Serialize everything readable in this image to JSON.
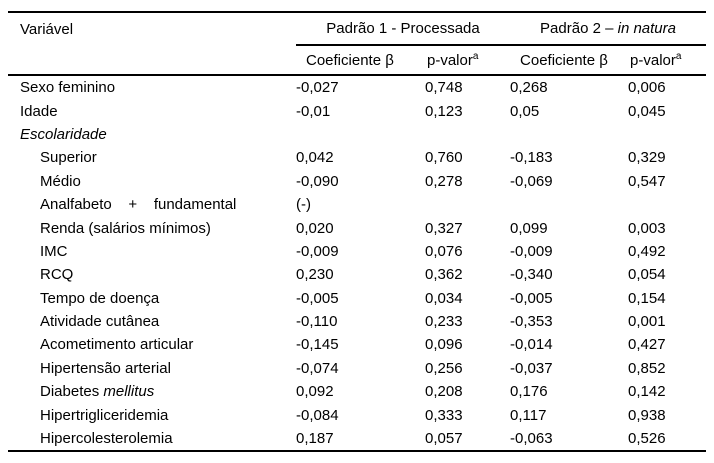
{
  "table": {
    "header": {
      "variable_col": "Variável",
      "group1": "Padrão 1 - Processada",
      "group2_prefix": "Padrão 2 – ",
      "group2_italic": "in natura",
      "sub_coef1": "Coeficiente β",
      "sub_pval1": "p-valor",
      "sub_pval1_sup": "a",
      "sub_coef2": "Coeficiente β",
      "sub_pval2": "p-valor",
      "sub_pval2_sup": "a"
    },
    "rows": [
      {
        "label": "Sexo feminino",
        "c1": "-0,027",
        "p1": "0,748",
        "c2": "0,268",
        "p2": "0,006"
      },
      {
        "label": "Idade",
        "c1": "-0,01",
        "p1": "0,123",
        "c2": "0,05",
        "p2": "0,045"
      },
      {
        "label": "Escolaridade",
        "c1": "",
        "p1": "",
        "c2": "",
        "p2": ""
      },
      {
        "label": "Superior",
        "c1": "0,042",
        "p1": "0,760",
        "c2": "-0,183",
        "p2": "0,329"
      },
      {
        "label": "Médio",
        "c1": "-0,090",
        "p1": "0,278",
        "c2": "-0,069",
        "p2": "0,547"
      },
      {
        "label": "Analfabeto    +    fundamental",
        "c1": "(-)",
        "p1": "",
        "c2": "",
        "p2": ""
      },
      {
        "label": "Renda (salários mínimos)",
        "c1": "0,020",
        "p1": "0,327",
        "c2": "0,099",
        "p2": "0,003"
      },
      {
        "label": "IMC",
        "c1": "-0,009",
        "p1": "0,076",
        "c2": "-0,009",
        "p2": "0,492"
      },
      {
        "label": "RCQ",
        "c1": "0,230",
        "p1": "0,362",
        "c2": "-0,340",
        "p2": "0,054"
      },
      {
        "label": "Tempo de doença",
        "c1": "-0,005",
        "p1": "0,034",
        "c2": "-0,005",
        "p2": "0,154"
      },
      {
        "label": "Atividade cutânea",
        "c1": "-0,110",
        "p1": "0,233",
        "c2": "-0,353",
        "p2": "0,001"
      },
      {
        "label": "Acometimento articular",
        "c1": "-0,145",
        "p1": "0,096",
        "c2": "-0,014",
        "p2": "0,427"
      },
      {
        "label": "Hipertensão arterial",
        "c1": "-0,074",
        "p1": "0,256",
        "c2": "-0,037",
        "p2": "0,852"
      },
      {
        "label_prefix": "Diabetes ",
        "label_italic": "mellitus",
        "c1": "0,092",
        "p1": "0,208",
        "c2": "0,176",
        "p2": "0,142"
      },
      {
        "label": "Hipertrigliceridemia",
        "c1": "-0,084",
        "p1": "0,333",
        "c2": "0,117",
        "p2": "0,938"
      },
      {
        "label": "Hipercolesterolemia",
        "c1": "0,187",
        "p1": "0,057",
        "c2": "-0,063",
        "p2": "0,526"
      }
    ]
  }
}
